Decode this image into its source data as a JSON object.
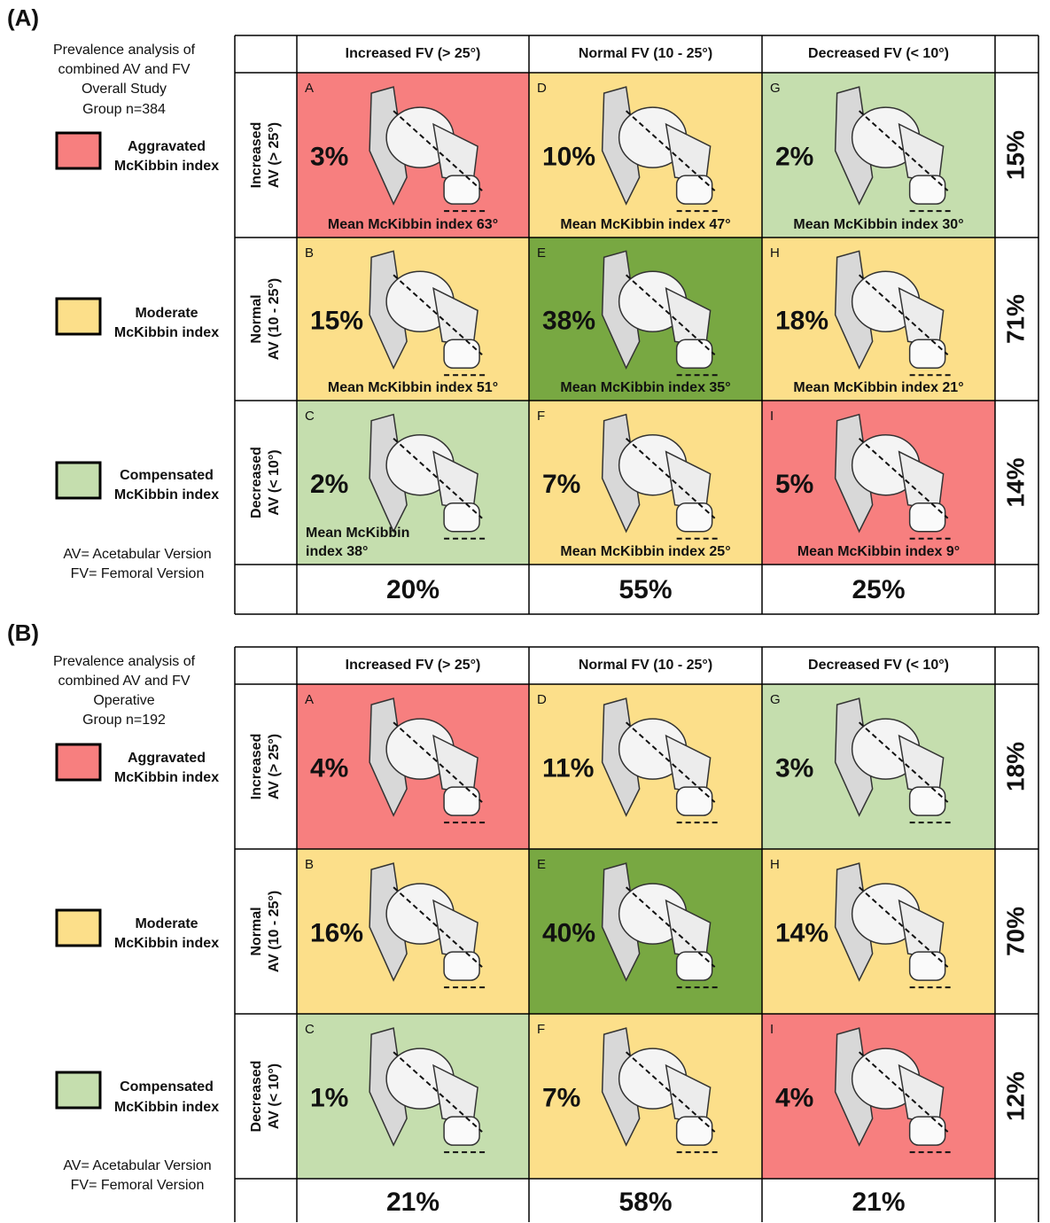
{
  "panels": [
    {
      "label": "(A)",
      "description": [
        "Prevalence analysis of",
        "combined AV and FV",
        "Overall Study",
        "Group n=384"
      ],
      "legend": [
        {
          "label": [
            "Aggravated",
            "McKibbin index"
          ],
          "color": "#f77f7f"
        },
        {
          "label": [
            "Moderate",
            "McKibbin index"
          ],
          "color": "#fcdf8a"
        },
        {
          "label": [
            "Compensated",
            "McKibbin index"
          ],
          "color": "#c5deae"
        }
      ],
      "footnotes": [
        "AV= Acetabular Version",
        "FV= Femoral Version"
      ],
      "column_headers": [
        "Increased FV (> 25°)",
        "Normal FV (10 - 25°)",
        "Decreased FV (< 10°)"
      ],
      "row_headers": [
        [
          "Increased",
          "AV (> 25°)"
        ],
        [
          "Normal",
          "AV (10 - 25°)"
        ],
        [
          "Decreased",
          "AV (< 10°)"
        ]
      ],
      "cells": [
        [
          {
            "letter": "A",
            "percent": "3%",
            "mean": [
              "Mean McKibbin index 63°"
            ],
            "color": "#f77f7f"
          },
          {
            "letter": "D",
            "percent": "10%",
            "mean": [
              "Mean McKibbin index 47°"
            ],
            "color": "#fcdf8a"
          },
          {
            "letter": "G",
            "percent": "2%",
            "mean": [
              "Mean McKibbin index 30°"
            ],
            "color": "#c5deae"
          }
        ],
        [
          {
            "letter": "B",
            "percent": "15%",
            "mean": [
              "Mean McKibbin index 51°"
            ],
            "color": "#fcdf8a"
          },
          {
            "letter": "E",
            "percent": "38%",
            "mean": [
              "Mean McKibbin index 35°"
            ],
            "color": "#78a842"
          },
          {
            "letter": "H",
            "percent": "18%",
            "mean": [
              "Mean McKibbin index 21°"
            ],
            "color": "#fcdf8a"
          }
        ],
        [
          {
            "letter": "C",
            "percent": "2%",
            "mean": [
              "Mean McKibbin",
              "index 38°"
            ],
            "color": "#c5deae"
          },
          {
            "letter": "F",
            "percent": "7%",
            "mean": [
              "Mean McKibbin index 25°"
            ],
            "color": "#fcdf8a"
          },
          {
            "letter": "I",
            "percent": "5%",
            "mean": [
              "Mean McKibbin index 9°"
            ],
            "color": "#f77f7f"
          }
        ]
      ],
      "row_totals": [
        "15%",
        "71%",
        "14%"
      ],
      "column_totals": [
        "20%",
        "55%",
        "25%"
      ]
    },
    {
      "label": "(B)",
      "description": [
        "Prevalence analysis of",
        "combined AV and FV",
        "Operative",
        "Group n=192"
      ],
      "legend": [
        {
          "label": [
            "Aggravated",
            "McKibbin index"
          ],
          "color": "#f77f7f"
        },
        {
          "label": [
            "Moderate",
            "McKibbin index"
          ],
          "color": "#fcdf8a"
        },
        {
          "label": [
            "Compensated",
            "McKibbin index"
          ],
          "color": "#c5deae"
        }
      ],
      "footnotes": [
        "AV= Acetabular Version",
        "FV= Femoral Version"
      ],
      "column_headers": [
        "Increased FV (> 25°)",
        "Normal FV (10 - 25°)",
        "Decreased FV (< 10°)"
      ],
      "row_headers": [
        [
          "Increased",
          "AV (> 25°)"
        ],
        [
          "Normal",
          "AV (10 - 25°)"
        ],
        [
          "Decreased",
          "AV (< 10°)"
        ]
      ],
      "cells": [
        [
          {
            "letter": "A",
            "percent": "4%",
            "color": "#f77f7f"
          },
          {
            "letter": "D",
            "percent": "11%",
            "color": "#fcdf8a"
          },
          {
            "letter": "G",
            "percent": "3%",
            "color": "#c5deae"
          }
        ],
        [
          {
            "letter": "B",
            "percent": "16%",
            "color": "#fcdf8a"
          },
          {
            "letter": "E",
            "percent": "40%",
            "color": "#78a842"
          },
          {
            "letter": "H",
            "percent": "14%",
            "color": "#fcdf8a"
          }
        ],
        [
          {
            "letter": "C",
            "percent": "1%",
            "color": "#c5deae"
          },
          {
            "letter": "F",
            "percent": "7%",
            "color": "#fcdf8a"
          },
          {
            "letter": "I",
            "percent": "4%",
            "color": "#f77f7f"
          }
        ]
      ],
      "row_totals": [
        "18%",
        "70%",
        "12%"
      ],
      "column_totals": [
        "21%",
        "58%",
        "21%"
      ]
    }
  ]
}
